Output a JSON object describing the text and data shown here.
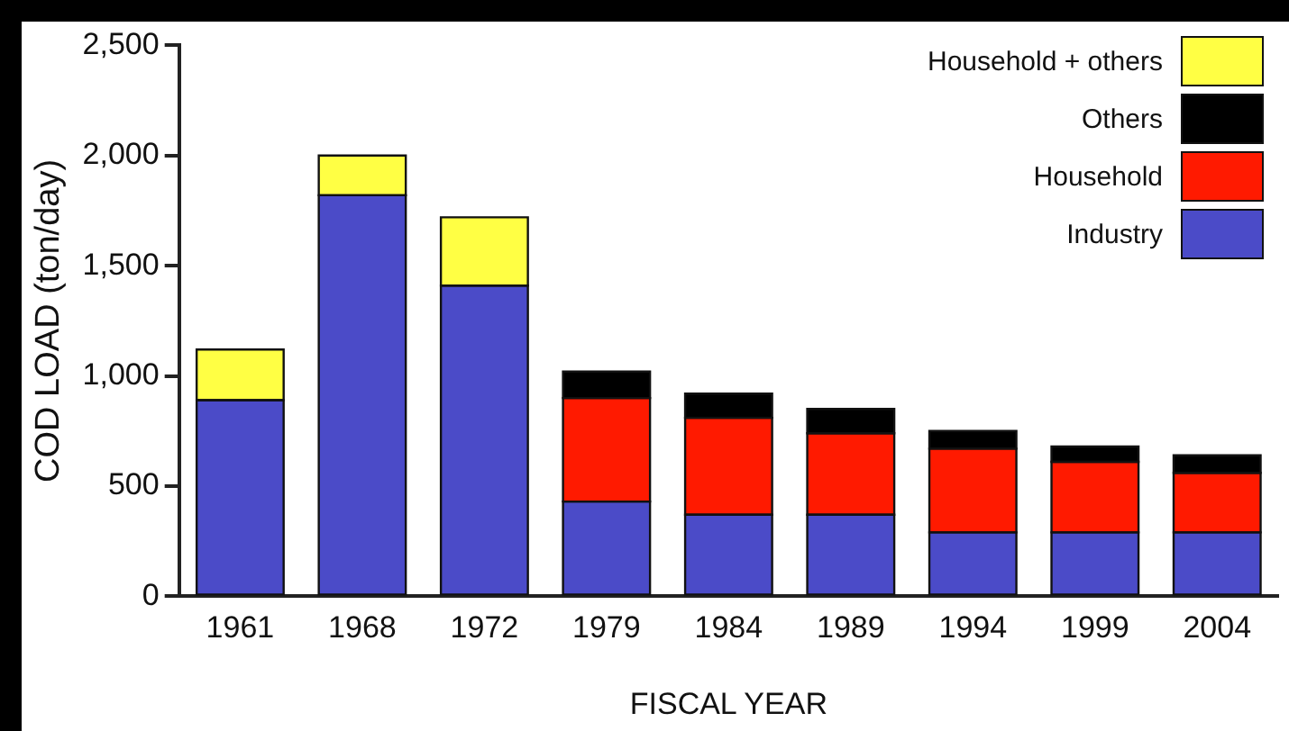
{
  "chart_data": {
    "type": "bar",
    "stacked": true,
    "xlabel": "FISCAL YEAR",
    "ylabel": "COD LOAD (ton/day)",
    "categories": [
      "1961",
      "1968",
      "1972",
      "1979",
      "1984",
      "1989",
      "1994",
      "1999",
      "2004"
    ],
    "series": [
      {
        "name": "Industry",
        "color": "#4b4bc8",
        "values": [
          890,
          1820,
          1410,
          430,
          370,
          370,
          290,
          290,
          290
        ]
      },
      {
        "name": "Household",
        "color": "#ff1a00",
        "values": [
          null,
          null,
          null,
          470,
          440,
          370,
          380,
          320,
          270
        ]
      },
      {
        "name": "Others",
        "color": "#000000",
        "values": [
          null,
          null,
          null,
          120,
          110,
          110,
          80,
          70,
          80
        ]
      },
      {
        "name": "Household + others",
        "color": "#ffff44",
        "values": [
          230,
          180,
          310,
          null,
          null,
          null,
          null,
          null,
          null
        ]
      }
    ],
    "ylim": [
      0,
      2500
    ],
    "yticks": [
      0,
      {
        "value": 500,
        "label": "500"
      },
      {
        "value": 1000,
        "label": "1,000"
      },
      {
        "value": 1500,
        "label": "1,500"
      },
      {
        "value": 2000,
        "label": "2,000"
      },
      {
        "value": 2500,
        "label": "2,500"
      }
    ],
    "grid": false,
    "legend": "top right"
  }
}
